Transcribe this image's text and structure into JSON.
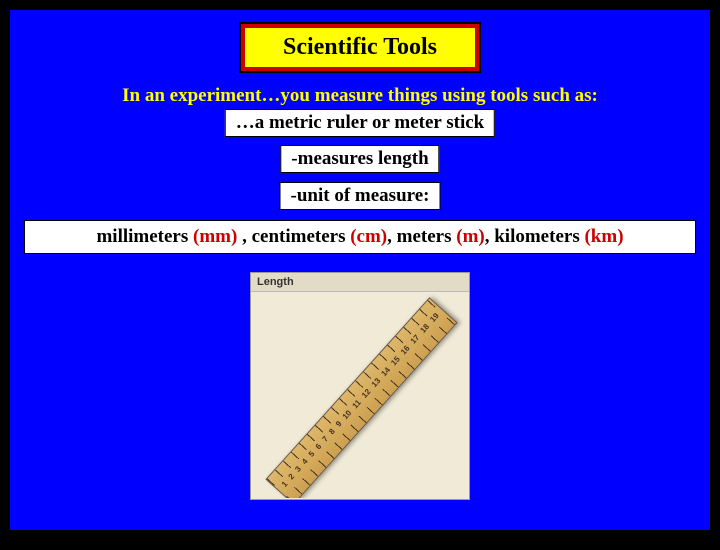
{
  "title": "Scientific Tools",
  "intro": "In an experiment…you measure things using tools such as:",
  "tool": "…a metric ruler or meter stick",
  "measures": "-measures length",
  "unit_label": "-unit of measure:",
  "units": {
    "parts": [
      {
        "name": "millimeters",
        "abbr": "(mm)"
      },
      {
        "name": "centimeters",
        "abbr": "(cm)"
      },
      {
        "name": "meters",
        "abbr": "(m)"
      },
      {
        "name": "kilometers",
        "abbr": "(km)"
      }
    ]
  },
  "image_label": "Length",
  "ruler_numbers": [
    "1",
    "2",
    "3",
    "4",
    "5",
    "6",
    "7",
    "8",
    "9",
    "10",
    "11",
    "12",
    "13",
    "14",
    "15",
    "16",
    "17",
    "18",
    "19"
  ],
  "colors": {
    "slide_bg": "#0000ff",
    "title_bg": "#ffff00",
    "title_border": "#cc0000",
    "intro_text": "#ffff00",
    "box_bg": "#ffffff",
    "abbr": "#cc0000",
    "panel_bg": "#f0ead6",
    "ruler": "#deb76a"
  },
  "typography": {
    "title_size_pt": 24,
    "body_size_pt": 19,
    "image_label_size_pt": 11,
    "family": "Times New Roman"
  }
}
